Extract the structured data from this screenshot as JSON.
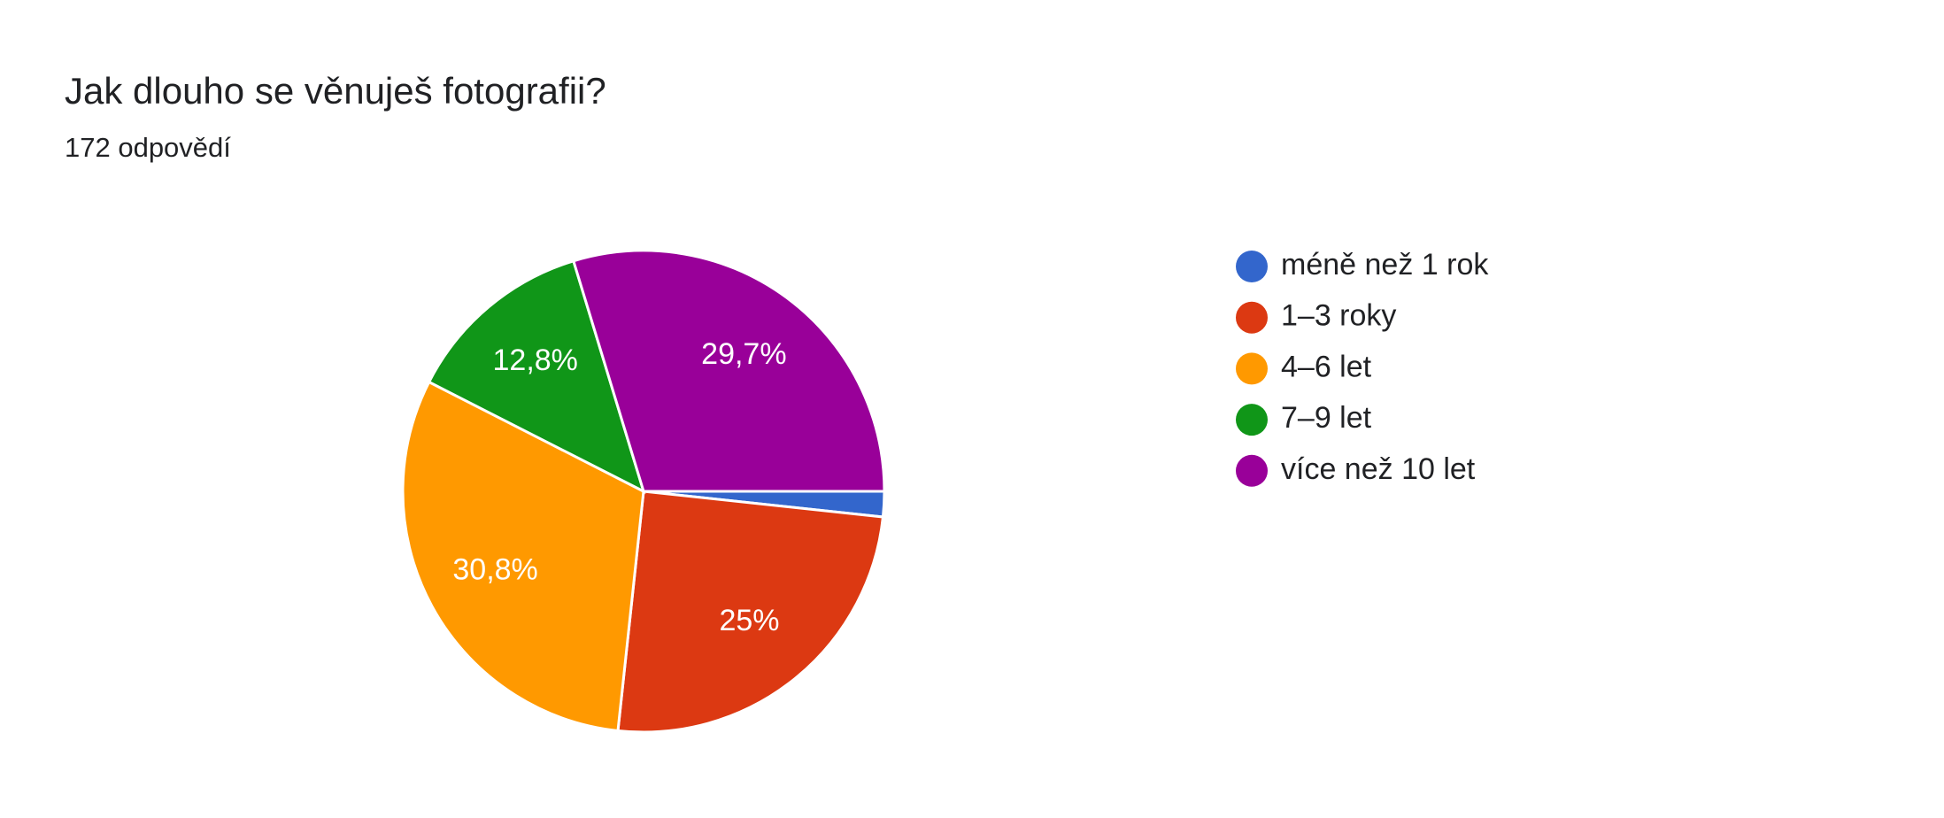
{
  "chart_data": {
    "type": "pie",
    "title": "Jak dlouho se věnuješ fotografii?",
    "subtitle": "172 odpovědí",
    "categories": [
      "méně než 1 rok",
      "1–3 roky",
      "4–6 let",
      "7–9 let",
      "více než 10 let"
    ],
    "values": [
      1.7,
      25,
      30.8,
      12.8,
      29.7
    ],
    "value_labels": [
      null,
      "25%",
      "30,8%",
      "12,8%",
      "29,7%"
    ],
    "colors": [
      "#3366cc",
      "#dc3912",
      "#ff9900",
      "#109618",
      "#990099"
    ],
    "legend": "right"
  }
}
